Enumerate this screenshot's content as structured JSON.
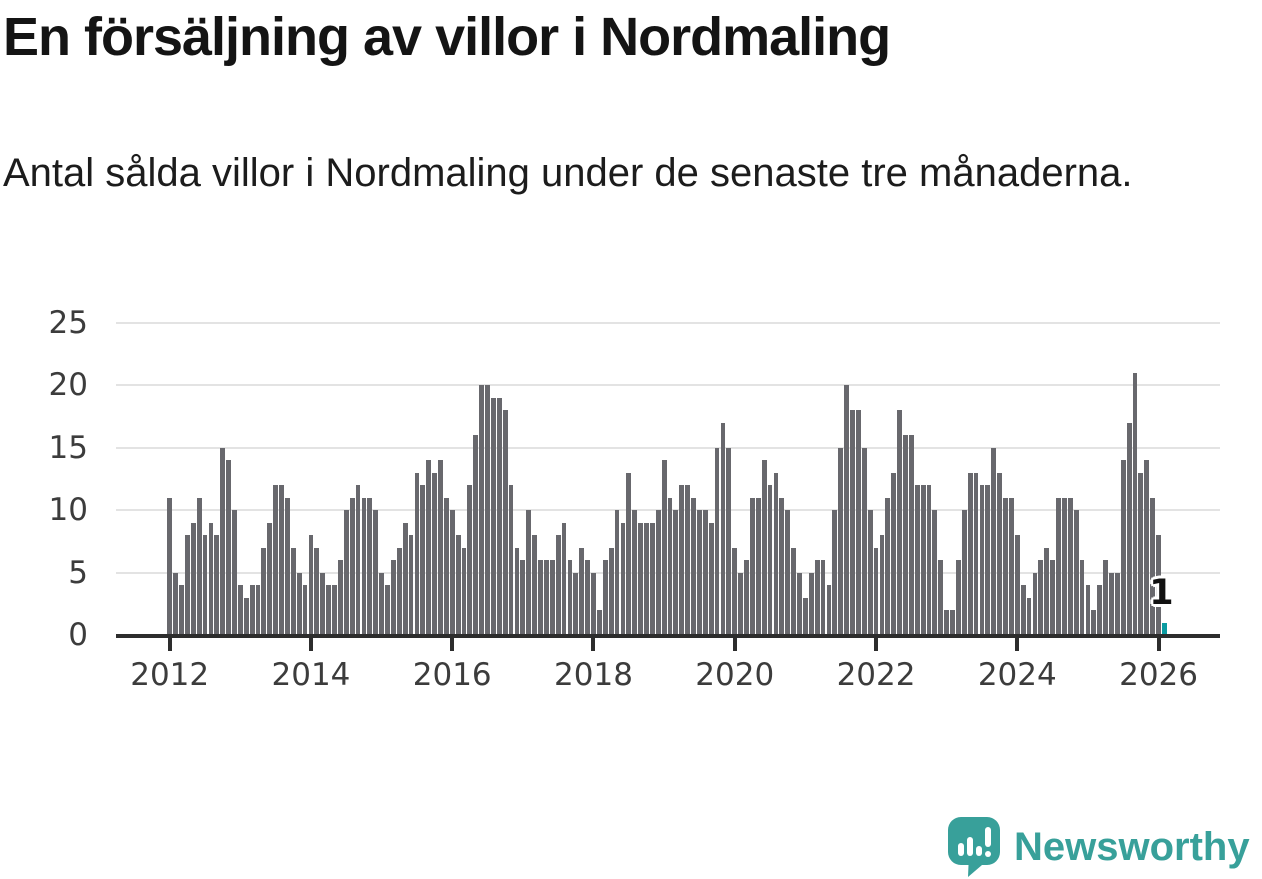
{
  "header": {
    "title": "En försäljning av villor i Nordmaling",
    "subtitle": "Antal sålda villor i Nordmaling under de senaste tre månaderna."
  },
  "chart_data": {
    "type": "bar",
    "title": "En försäljning av villor i Nordmaling",
    "subtitle": "Antal sålda villor i Nordmaling under de senaste tre månaderna.",
    "x_unit": "month",
    "x_start": "2012-01",
    "x_end": "2026-02",
    "x_tick_labels": [
      "2012",
      "2014",
      "2016",
      "2018",
      "2020",
      "2022",
      "2024",
      "2026"
    ],
    "y_ticks": [
      0,
      5,
      10,
      15,
      20,
      25
    ],
    "ylim": [
      0,
      25
    ],
    "grid": "horizontal",
    "bar_color": "#68686D",
    "values_by_year": [
      {
        "year": 2012,
        "values": [
          11,
          5,
          4,
          8,
          9,
          11,
          8,
          9,
          8,
          15,
          14,
          10
        ]
      },
      {
        "year": 2013,
        "values": [
          4,
          3,
          4,
          4,
          7,
          9,
          12,
          12,
          11,
          7,
          5,
          4
        ]
      },
      {
        "year": 2014,
        "values": [
          8,
          7,
          5,
          4,
          4,
          6,
          10,
          11,
          12,
          11,
          11,
          10
        ]
      },
      {
        "year": 2015,
        "values": [
          5,
          4,
          6,
          7,
          9,
          8,
          13,
          12,
          14,
          13,
          14,
          11
        ]
      },
      {
        "year": 2016,
        "values": [
          10,
          8,
          7,
          12,
          16,
          20,
          20,
          19,
          19,
          18,
          12,
          7
        ]
      },
      {
        "year": 2017,
        "values": [
          6,
          10,
          8,
          6,
          6,
          6,
          8,
          9,
          6,
          5,
          7,
          6
        ]
      },
      {
        "year": 2018,
        "values": [
          5,
          2,
          6,
          7,
          10,
          9,
          13,
          10,
          9,
          9,
          9,
          10
        ]
      },
      {
        "year": 2019,
        "values": [
          14,
          11,
          10,
          12,
          12,
          11,
          10,
          10,
          9,
          15,
          17,
          15
        ]
      },
      {
        "year": 2020,
        "values": [
          7,
          5,
          6,
          11,
          11,
          14,
          12,
          13,
          11,
          10,
          7,
          5
        ]
      },
      {
        "year": 2021,
        "values": [
          3,
          5,
          6,
          6,
          4,
          10,
          15,
          20,
          18,
          18,
          15,
          10
        ]
      },
      {
        "year": 2022,
        "values": [
          7,
          8,
          11,
          13,
          18,
          16,
          16,
          12,
          12,
          12,
          10,
          6
        ]
      },
      {
        "year": 2023,
        "values": [
          2,
          2,
          6,
          10,
          13,
          13,
          12,
          12,
          15,
          13,
          11,
          11
        ]
      },
      {
        "year": 2024,
        "values": [
          8,
          4,
          3,
          5,
          6,
          7,
          6,
          11,
          11,
          11,
          10,
          6
        ]
      },
      {
        "year": 2025,
        "values": [
          4,
          2,
          4,
          6,
          5,
          5,
          14,
          17,
          21,
          13,
          14,
          11
        ]
      },
      {
        "year": 2026,
        "values": [
          8,
          1
        ]
      }
    ],
    "highlight_last": {
      "value": 1,
      "label": "1",
      "color": "#0B9BA1"
    },
    "legend": "none"
  },
  "logo": {
    "text": "Newsworthy",
    "color": "#38A09A",
    "icon": "newsworthy-logo-icon"
  }
}
